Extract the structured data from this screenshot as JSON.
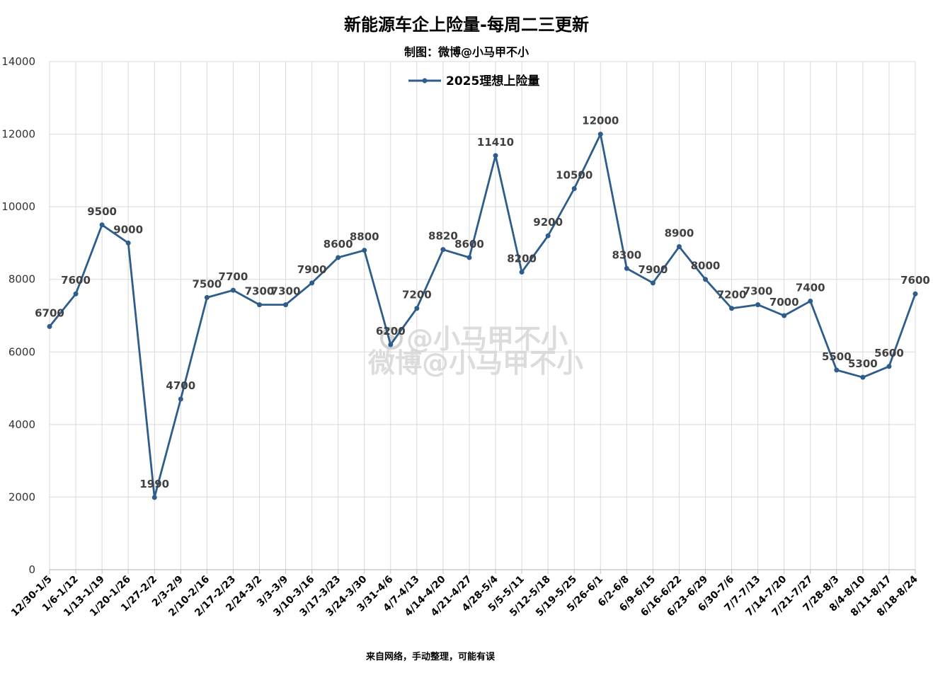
{
  "colors": {
    "series": "#2e5d8c",
    "grid": "#d9d9d9",
    "axis": "#bfbfbf"
  },
  "watermark": {
    "line1": "@小马甲不小",
    "line2": "微博@小马甲不小"
  },
  "footer": "来自网络，手动整理，可能有误",
  "chart_data": {
    "type": "line",
    "title": "新能源车企上险量-每周二三更新",
    "subtitle": "制图：微博@小马甲不小",
    "legend_position": "top-center",
    "grid": true,
    "ylim": [
      0,
      14000
    ],
    "yticks": [
      0,
      2000,
      4000,
      6000,
      8000,
      10000,
      12000,
      14000
    ],
    "categories": [
      "12/30-1/5",
      "1/6-1/12",
      "1/13-1/19",
      "1/20-1/26",
      "1/27-2/2",
      "2/3-2/9",
      "2/10-2/16",
      "2/17-2/23",
      "2/24-3/2",
      "3/3-3/9",
      "3/10-3/16",
      "3/17-3/23",
      "3/24-3/30",
      "3/31-4/6",
      "4/7-4/13",
      "4/14-4/20",
      "4/21-4/27",
      "4/28-5/4",
      "5/5-5/11",
      "5/12-5/18",
      "5/19-5/25",
      "5/26-6/1",
      "6/2-6/8",
      "6/9-6/15",
      "6/16-6/22",
      "6/23-6/29",
      "6/30-7/6",
      "7/7-7/13",
      "7/14-7/20",
      "7/21-7/27",
      "7/28-8/3",
      "8/4-8/10",
      "8/11-8/17",
      "8/18-8/24"
    ],
    "series": [
      {
        "name": "2025理想上险量",
        "values": [
          6700,
          7600,
          9500,
          9000,
          1990,
          4700,
          7500,
          7700,
          7300,
          7300,
          7900,
          8600,
          8800,
          6200,
          7200,
          8820,
          8600,
          11410,
          8200,
          9200,
          10500,
          12000,
          8300,
          7900,
          8900,
          8000,
          7200,
          7300,
          7000,
          7400,
          5500,
          5300,
          5600,
          7600
        ]
      }
    ]
  }
}
